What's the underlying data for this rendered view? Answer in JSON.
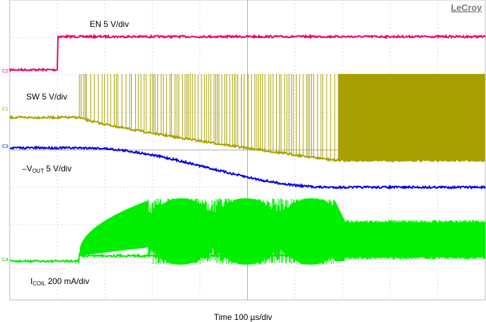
{
  "brand": "LeCroy",
  "channels": [
    {
      "marker": "C2",
      "label": "EN 5 V/div"
    },
    {
      "marker": "C1",
      "label": "SW 5 V/div"
    },
    {
      "marker": "C3",
      "label_prefix": "–V",
      "label_sub": "OUT",
      "label_suffix": " 5 V/div"
    },
    {
      "marker": "C4",
      "label_prefix": "I",
      "label_sub": "COIL",
      "label_suffix": " 200 mA/div"
    }
  ],
  "time_label": "Time 100 µs/div"
}
